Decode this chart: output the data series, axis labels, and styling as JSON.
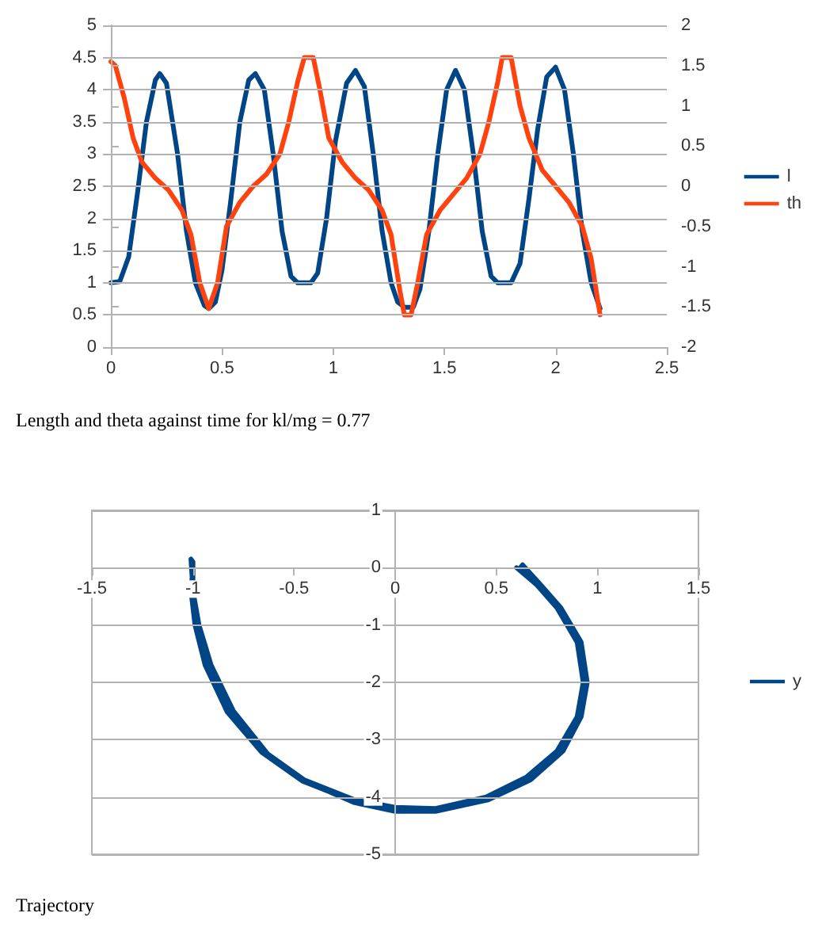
{
  "chart_data": [
    {
      "type": "line",
      "annotations": [
        "Length and theta against time for kl/mg = 0.77"
      ],
      "xlim": [
        0,
        2.5
      ],
      "xticks": [
        0,
        0.5,
        1,
        1.5,
        2,
        2.5
      ],
      "ylim": [
        0,
        5
      ],
      "yticks": [
        0,
        0.5,
        1,
        1.5,
        2,
        2.5,
        3,
        3.5,
        4,
        4.5,
        5
      ],
      "y2lim": [
        -2,
        2
      ],
      "y2ticks": [
        -2,
        -1.5,
        -1,
        -0.5,
        0,
        0.5,
        1,
        1.5,
        2
      ],
      "grid": "y",
      "legend": "right",
      "marker": "none",
      "line_style": "solid",
      "series": [
        {
          "name": "l",
          "color": "#004586",
          "x": [
            0,
            0.04,
            0.08,
            0.12,
            0.16,
            0.2,
            0.22,
            0.25,
            0.3,
            0.34,
            0.38,
            0.42,
            0.44,
            0.47,
            0.5,
            0.54,
            0.58,
            0.62,
            0.65,
            0.69,
            0.73,
            0.77,
            0.81,
            0.84,
            0.9,
            0.93,
            0.97,
            1.01,
            1.06,
            1.1,
            1.14,
            1.18,
            1.22,
            1.26,
            1.29,
            1.32,
            1.36,
            1.39,
            1.43,
            1.47,
            1.51,
            1.55,
            1.59,
            1.63,
            1.67,
            1.71,
            1.74,
            1.8,
            1.84,
            1.88,
            1.92,
            1.96,
            2.0,
            2.04,
            2.08,
            2.12,
            2.16,
            2.2
          ],
          "values": [
            1,
            1.02,
            1.4,
            2.4,
            3.5,
            4.15,
            4.25,
            4.1,
            3.0,
            1.8,
            1.0,
            0.65,
            0.6,
            0.7,
            1.2,
            2.3,
            3.5,
            4.15,
            4.25,
            4.0,
            3.0,
            1.8,
            1.1,
            1.0,
            1.0,
            1.15,
            2.0,
            3.2,
            4.1,
            4.3,
            4.05,
            3.0,
            1.8,
            1.0,
            0.7,
            0.62,
            0.62,
            0.9,
            1.8,
            3.0,
            4.0,
            4.3,
            4.0,
            3.0,
            1.8,
            1.1,
            1.0,
            1.0,
            1.3,
            2.3,
            3.4,
            4.2,
            4.35,
            4.0,
            3.0,
            1.8,
            1.0,
            0.6
          ]
        },
        {
          "name": "th",
          "color": "#ff420e",
          "axis": "y2",
          "x": [
            0,
            0.02,
            0.06,
            0.1,
            0.14,
            0.2,
            0.26,
            0.32,
            0.36,
            0.4,
            0.44,
            0.48,
            0.52,
            0.58,
            0.64,
            0.7,
            0.76,
            0.8,
            0.84,
            0.87,
            0.91,
            0.94,
            0.98,
            1.04,
            1.1,
            1.16,
            1.22,
            1.26,
            1.3,
            1.32,
            1.35,
            1.38,
            1.42,
            1.48,
            1.54,
            1.6,
            1.66,
            1.7,
            1.74,
            1.76,
            1.8,
            1.84,
            1.88,
            1.94,
            2.0,
            2.06,
            2.12,
            2.16,
            2.2
          ],
          "values": [
            1.55,
            1.5,
            1.1,
            0.6,
            0.3,
            0.1,
            -0.05,
            -0.3,
            -0.6,
            -1.2,
            -1.52,
            -1.2,
            -0.5,
            -0.2,
            0.0,
            0.15,
            0.4,
            0.8,
            1.3,
            1.6,
            1.6,
            1.2,
            0.6,
            0.3,
            0.1,
            -0.05,
            -0.3,
            -0.6,
            -1.3,
            -1.6,
            -1.6,
            -1.2,
            -0.6,
            -0.3,
            -0.1,
            0.1,
            0.4,
            0.8,
            1.3,
            1.6,
            1.6,
            1.0,
            0.6,
            0.2,
            0.0,
            -0.2,
            -0.5,
            -0.9,
            -1.6
          ]
        }
      ]
    },
    {
      "type": "line",
      "annotations": [
        "Trajectory"
      ],
      "xlim": [
        -1.5,
        1.5
      ],
      "xticks": [
        -1.5,
        -1,
        -0.5,
        0,
        0.5,
        1,
        1.5
      ],
      "ylim": [
        -5,
        1
      ],
      "yticks": [
        -5,
        -4,
        -3,
        -2,
        -1,
        0,
        1
      ],
      "grid": "y",
      "legend": "right",
      "marker": "none",
      "line_style": "solid",
      "series": [
        {
          "name": "y",
          "color": "#004586",
          "x": [
            0.6,
            0.7,
            0.8,
            0.9,
            0.93,
            0.9,
            0.8,
            0.65,
            0.45,
            0.2,
            0,
            -0.2,
            -0.45,
            -0.65,
            -0.82,
            -0.93,
            -0.98,
            -1.0,
            -1.0,
            -1.01,
            -1.0,
            -0.97,
            -0.91,
            -0.8,
            -0.63,
            -0.43,
            -0.2,
            0,
            0.2,
            0.46,
            0.67,
            0.83,
            0.92,
            0.95,
            0.92,
            0.82,
            0.72,
            0.63,
            0.62,
            0.72,
            0.82,
            0.91,
            0.94,
            0.91,
            0.81,
            0.66,
            0.46,
            0.21,
            0,
            -0.21,
            -0.46,
            -0.66,
            -0.83,
            -0.94,
            -0.99,
            -1.01,
            -1.0
          ],
          "values": [
            0,
            -0.3,
            -0.7,
            -1.3,
            -2.0,
            -2.6,
            -3.2,
            -3.65,
            -4.0,
            -4.2,
            -4.18,
            -4.05,
            -3.7,
            -3.2,
            -2.5,
            -1.7,
            -1.0,
            -0.4,
            0.1,
            0.15,
            -0.4,
            -1.0,
            -1.7,
            -2.5,
            -3.25,
            -3.75,
            -4.1,
            -4.25,
            -4.25,
            -4.05,
            -3.7,
            -3.2,
            -2.6,
            -2.0,
            -1.3,
            -0.7,
            -0.3,
            0.05,
            0.0,
            -0.35,
            -0.75,
            -1.35,
            -2.0,
            -2.6,
            -3.2,
            -3.65,
            -4.0,
            -4.2,
            -4.2,
            -4.07,
            -3.72,
            -3.22,
            -2.52,
            -1.7,
            -1.0,
            -0.4,
            0.0
          ]
        }
      ]
    }
  ]
}
